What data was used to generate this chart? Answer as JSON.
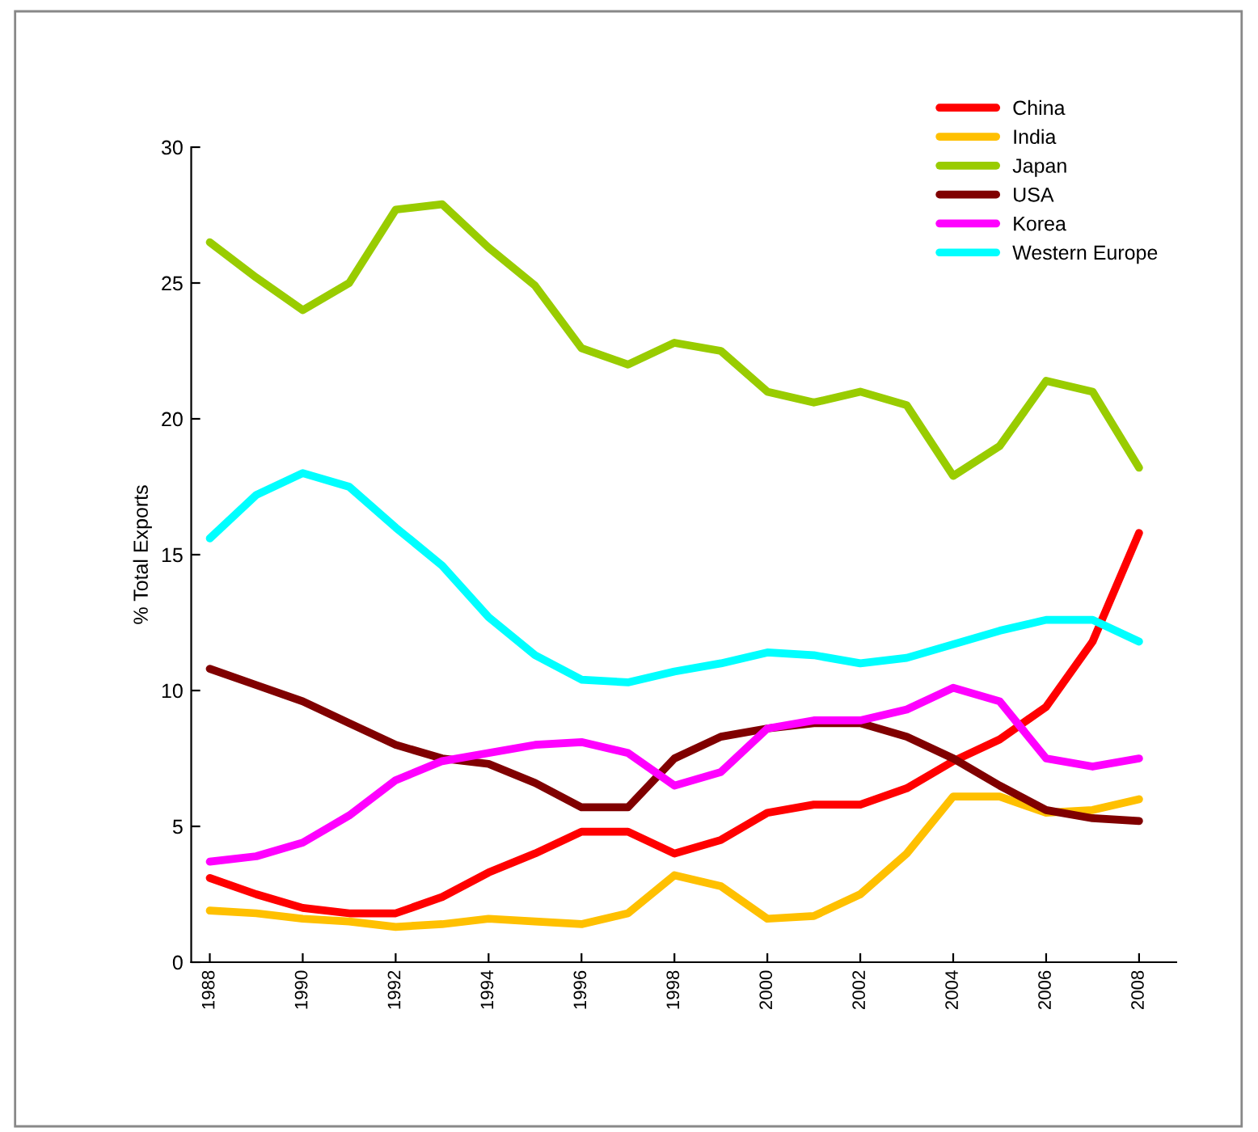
{
  "chart_data": {
    "type": "line",
    "ylabel": "% Total Exports",
    "x": [
      1988,
      1989,
      1990,
      1991,
      1992,
      1993,
      1994,
      1995,
      1996,
      1997,
      1998,
      1999,
      2000,
      2001,
      2002,
      2003,
      2004,
      2005,
      2006,
      2007,
      2008
    ],
    "xlim": [
      1987.6,
      2008.8
    ],
    "xticks": [
      1988,
      1990,
      1992,
      1994,
      1996,
      1998,
      2000,
      2002,
      2004,
      2006,
      2008
    ],
    "ylim": [
      0,
      30
    ],
    "yticks": [
      0,
      5,
      10,
      15,
      20,
      25,
      30
    ],
    "grid": false,
    "legend": "top right",
    "marker": "none",
    "line_style": "solid",
    "series": [
      {
        "name": "China",
        "color": "#ff0000",
        "values": [
          3.1,
          2.5,
          2.0,
          1.8,
          1.8,
          2.4,
          3.3,
          4.0,
          4.8,
          4.8,
          4.0,
          4.5,
          5.5,
          5.8,
          5.8,
          6.4,
          7.4,
          8.2,
          9.4,
          11.8,
          15.8
        ]
      },
      {
        "name": "India",
        "color": "#ffc000",
        "values": [
          1.9,
          1.8,
          1.6,
          1.5,
          1.3,
          1.4,
          1.6,
          1.5,
          1.4,
          1.8,
          3.2,
          2.8,
          1.6,
          1.7,
          2.5,
          4.0,
          6.1,
          6.1,
          5.5,
          5.6,
          6.0
        ]
      },
      {
        "name": "Japan",
        "color": "#99cc00",
        "values": [
          26.5,
          25.2,
          24.0,
          25.0,
          27.7,
          27.9,
          26.3,
          24.9,
          22.6,
          22.0,
          22.8,
          22.5,
          21.0,
          20.6,
          21.0,
          20.5,
          17.9,
          19.0,
          21.4,
          21.0,
          18.2
        ]
      },
      {
        "name": "USA",
        "color": "#800000",
        "values": [
          10.8,
          10.2,
          9.6,
          8.8,
          8.0,
          7.5,
          7.3,
          6.6,
          5.7,
          5.7,
          7.5,
          8.3,
          8.6,
          8.8,
          8.8,
          8.3,
          7.5,
          6.5,
          5.6,
          5.3,
          5.2
        ]
      },
      {
        "name": "Korea",
        "color": "#ff00ff",
        "values": [
          3.7,
          3.9,
          4.4,
          5.4,
          6.7,
          7.4,
          7.7,
          8.0,
          8.1,
          7.7,
          6.5,
          7.0,
          8.6,
          8.9,
          8.9,
          9.3,
          10.1,
          9.6,
          7.5,
          7.2,
          7.5
        ]
      },
      {
        "name": "Western Europe",
        "color": "#00ffff",
        "values": [
          15.6,
          17.2,
          18.0,
          17.5,
          16.0,
          14.6,
          12.7,
          11.3,
          10.4,
          10.3,
          10.7,
          11.0,
          11.4,
          11.3,
          11.0,
          11.2,
          11.7,
          12.2,
          12.6,
          12.6,
          11.8
        ]
      }
    ]
  }
}
